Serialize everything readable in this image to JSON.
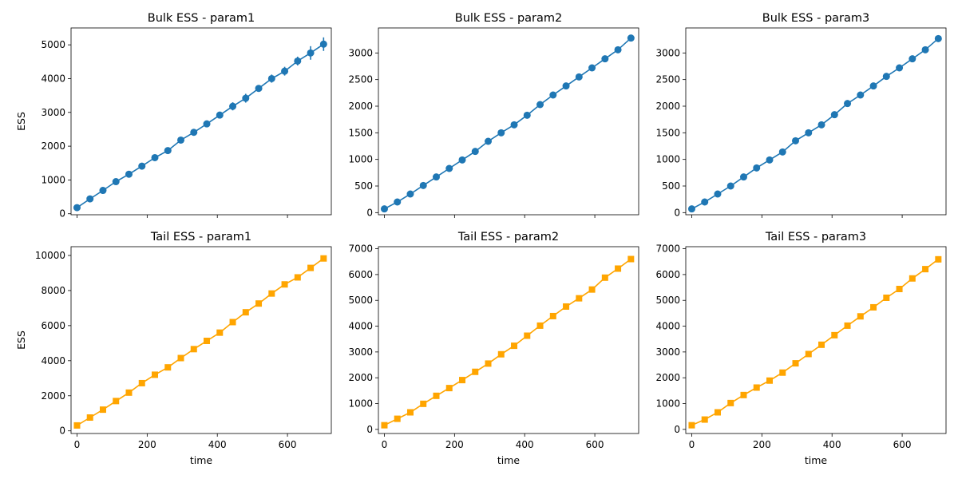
{
  "chart_data": [
    {
      "type": "line",
      "title": "Bulk ESS - param1",
      "xlabel": "",
      "ylabel": "ESS",
      "marker": "circle",
      "color": "#1f77b4",
      "xlim": [
        -17,
        725
      ],
      "ylim": [
        -30,
        5500
      ],
      "xticks": [
        0,
        200,
        400,
        600
      ],
      "xticklabels_visible": false,
      "yticks": [
        0,
        1000,
        2000,
        3000,
        4000,
        5000
      ],
      "x": [
        0,
        37,
        74,
        111,
        148,
        185,
        222,
        259,
        296,
        333,
        370,
        407,
        444,
        481,
        518,
        555,
        592,
        629,
        666,
        703
      ],
      "y": [
        180,
        440,
        690,
        950,
        1170,
        1410,
        1660,
        1870,
        2180,
        2410,
        2660,
        2920,
        3180,
        3420,
        3710,
        4000,
        4220,
        4520,
        4760,
        5020
      ],
      "yerr": [
        20,
        30,
        30,
        40,
        40,
        50,
        50,
        60,
        60,
        60,
        60,
        80,
        120,
        130,
        100,
        120,
        130,
        130,
        200,
        200
      ]
    },
    {
      "type": "line",
      "title": "Bulk ESS - param2",
      "xlabel": "",
      "ylabel": "",
      "marker": "circle",
      "color": "#1f77b4",
      "xlim": [
        -17,
        725
      ],
      "ylim": [
        -40,
        3470
      ],
      "xticks": [
        0,
        200,
        400,
        600
      ],
      "xticklabels_visible": false,
      "yticks": [
        0,
        500,
        1000,
        1500,
        2000,
        2500,
        3000
      ],
      "x": [
        0,
        37,
        74,
        111,
        148,
        185,
        222,
        259,
        296,
        333,
        370,
        407,
        444,
        481,
        518,
        555,
        592,
        629,
        666,
        703
      ],
      "y": [
        70,
        200,
        350,
        510,
        670,
        830,
        990,
        1150,
        1340,
        1500,
        1650,
        1830,
        2030,
        2210,
        2380,
        2550,
        2720,
        2890,
        3060,
        3280
      ],
      "yerr": [
        10,
        10,
        15,
        15,
        20,
        20,
        20,
        25,
        25,
        25,
        25,
        30,
        30,
        30,
        30,
        30,
        30,
        30,
        30,
        30
      ]
    },
    {
      "type": "line",
      "title": "Bulk ESS - param3",
      "xlabel": "",
      "ylabel": "",
      "marker": "circle",
      "color": "#1f77b4",
      "xlim": [
        -17,
        725
      ],
      "ylim": [
        -40,
        3470
      ],
      "xticks": [
        0,
        200,
        400,
        600
      ],
      "xticklabels_visible": false,
      "yticks": [
        0,
        500,
        1000,
        1500,
        2000,
        2500,
        3000
      ],
      "x": [
        0,
        37,
        74,
        111,
        148,
        185,
        222,
        259,
        296,
        333,
        370,
        407,
        444,
        481,
        518,
        555,
        592,
        629,
        666,
        703
      ],
      "y": [
        70,
        200,
        350,
        500,
        670,
        840,
        990,
        1140,
        1350,
        1500,
        1650,
        1840,
        2050,
        2210,
        2380,
        2560,
        2720,
        2890,
        3060,
        3270
      ],
      "yerr": [
        10,
        10,
        15,
        15,
        20,
        20,
        20,
        25,
        25,
        25,
        25,
        30,
        30,
        30,
        30,
        30,
        30,
        30,
        30,
        30
      ]
    },
    {
      "type": "line",
      "title": "Tail ESS - param1",
      "xlabel": "time",
      "ylabel": "ESS",
      "marker": "square",
      "color": "#ffa500",
      "xlim": [
        -17,
        725
      ],
      "ylim": [
        -150,
        10500
      ],
      "xticks": [
        0,
        200,
        400,
        600
      ],
      "xticklabels_visible": true,
      "yticks": [
        0,
        2000,
        4000,
        6000,
        8000,
        10000
      ],
      "x": [
        0,
        37,
        74,
        111,
        148,
        185,
        222,
        259,
        296,
        333,
        370,
        407,
        444,
        481,
        518,
        555,
        592,
        629,
        666,
        703
      ],
      "y": [
        310,
        760,
        1210,
        1700,
        2180,
        2720,
        3200,
        3620,
        4150,
        4660,
        5130,
        5600,
        6200,
        6760,
        7260,
        7830,
        8350,
        8750,
        9290,
        9830
      ],
      "yerr": [
        20,
        30,
        30,
        40,
        40,
        50,
        50,
        50,
        60,
        60,
        60,
        60,
        70,
        70,
        80,
        80,
        90,
        90,
        100,
        100
      ]
    },
    {
      "type": "line",
      "title": "Tail ESS - param2",
      "xlabel": "time",
      "ylabel": "",
      "marker": "square",
      "color": "#ffa500",
      "xlim": [
        -17,
        725
      ],
      "ylim": [
        -160,
        7080
      ],
      "xticks": [
        0,
        200,
        400,
        600
      ],
      "xticklabels_visible": true,
      "yticks": [
        0,
        1000,
        2000,
        3000,
        4000,
        5000,
        6000,
        7000
      ],
      "x": [
        0,
        37,
        74,
        111,
        148,
        185,
        222,
        259,
        296,
        333,
        370,
        407,
        444,
        481,
        518,
        555,
        592,
        629,
        666,
        703
      ],
      "y": [
        160,
        410,
        660,
        990,
        1300,
        1600,
        1910,
        2230,
        2550,
        2910,
        3240,
        3630,
        4020,
        4390,
        4760,
        5080,
        5420,
        5880,
        6230,
        6600
      ],
      "yerr": [
        10,
        20,
        20,
        30,
        30,
        30,
        40,
        40,
        40,
        50,
        50,
        50,
        60,
        60,
        60,
        60,
        70,
        70,
        80,
        80
      ]
    },
    {
      "type": "line",
      "title": "Tail ESS - param3",
      "xlabel": "time",
      "ylabel": "",
      "marker": "square",
      "color": "#ffa500",
      "xlim": [
        -17,
        725
      ],
      "ylim": [
        -160,
        7080
      ],
      "xticks": [
        0,
        200,
        400,
        600
      ],
      "xticklabels_visible": true,
      "yticks": [
        0,
        1000,
        2000,
        3000,
        4000,
        5000,
        6000,
        7000
      ],
      "x": [
        0,
        37,
        74,
        111,
        148,
        185,
        222,
        259,
        296,
        333,
        370,
        407,
        444,
        481,
        518,
        555,
        592,
        629,
        666,
        703
      ],
      "y": [
        160,
        380,
        660,
        1020,
        1330,
        1620,
        1890,
        2200,
        2560,
        2920,
        3280,
        3650,
        4020,
        4380,
        4730,
        5100,
        5440,
        5850,
        6210,
        6590
      ],
      "yerr": [
        10,
        20,
        20,
        30,
        30,
        30,
        40,
        40,
        40,
        50,
        50,
        50,
        60,
        60,
        60,
        60,
        70,
        70,
        80,
        120
      ]
    }
  ]
}
